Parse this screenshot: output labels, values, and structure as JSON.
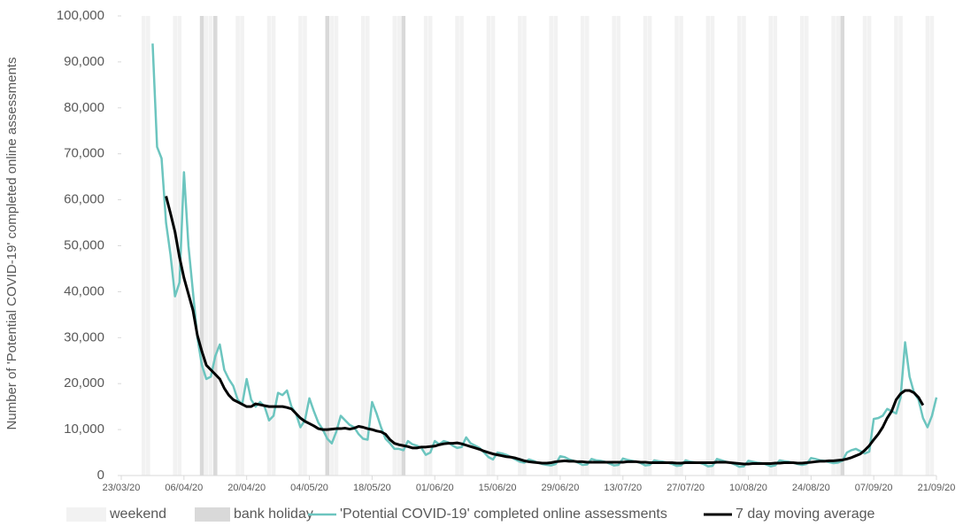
{
  "chart_data": {
    "type": "line",
    "y_label": "Number of 'Potential COVID-19' completed online assessments",
    "xlim": [
      "23/03/20",
      "21/09/20"
    ],
    "xticks": [
      "23/03/20",
      "06/04/20",
      "20/04/20",
      "04/05/20",
      "18/05/20",
      "01/06/20",
      "15/06/20",
      "29/06/20",
      "13/07/20",
      "27/07/20",
      "10/08/20",
      "24/08/20",
      "07/09/20",
      "21/09/20"
    ],
    "ylim": [
      0,
      100000
    ],
    "yticks": [
      {
        "value": 0,
        "label": "0"
      },
      {
        "value": 10000,
        "label": "10,000"
      },
      {
        "value": 20000,
        "label": "20,000"
      },
      {
        "value": 30000,
        "label": "30,000"
      },
      {
        "value": 40000,
        "label": "40,000"
      },
      {
        "value": 50000,
        "label": "50,000"
      },
      {
        "value": 60000,
        "label": "60,000"
      },
      {
        "value": 70000,
        "label": "70,000"
      },
      {
        "value": 80000,
        "label": "80,000"
      },
      {
        "value": 90000,
        "label": "90,000"
      },
      {
        "value": 100000,
        "label": "100,000"
      }
    ],
    "bands": [
      {
        "name": "weekend",
        "color": "#f2f2f2"
      },
      {
        "name": "bank holiday",
        "color": "#d9d9d9"
      }
    ],
    "bank_holidays": [
      "10/04/20",
      "13/04/20",
      "08/05/20",
      "25/05/20",
      "31/08/20"
    ],
    "x": [
      "30/03/20",
      "31/03/20",
      "01/04/20",
      "02/04/20",
      "03/04/20",
      "04/04/20",
      "05/04/20",
      "06/04/20",
      "07/04/20",
      "08/04/20",
      "09/04/20",
      "10/04/20",
      "11/04/20",
      "12/04/20",
      "13/04/20",
      "14/04/20",
      "15/04/20",
      "16/04/20",
      "17/04/20",
      "18/04/20",
      "19/04/20",
      "20/04/20",
      "21/04/20",
      "22/04/20",
      "23/04/20",
      "24/04/20",
      "25/04/20",
      "26/04/20",
      "27/04/20",
      "28/04/20",
      "29/04/20",
      "30/04/20",
      "01/05/20",
      "02/05/20",
      "03/05/20",
      "04/05/20",
      "05/05/20",
      "06/05/20",
      "07/05/20",
      "08/05/20",
      "09/05/20",
      "10/05/20",
      "11/05/20",
      "12/05/20",
      "13/05/20",
      "14/05/20",
      "15/05/20",
      "16/05/20",
      "17/05/20",
      "18/05/20",
      "19/05/20",
      "20/05/20",
      "21/05/20",
      "22/05/20",
      "23/05/20",
      "24/05/20",
      "25/05/20",
      "26/05/20",
      "27/05/20",
      "28/05/20",
      "29/05/20",
      "30/05/20",
      "31/05/20",
      "01/06/20",
      "02/06/20",
      "03/06/20",
      "04/06/20",
      "05/06/20",
      "06/06/20",
      "07/06/20",
      "08/06/20",
      "09/06/20",
      "10/06/20",
      "11/06/20",
      "12/06/20",
      "13/06/20",
      "14/06/20",
      "15/06/20",
      "16/06/20",
      "17/06/20",
      "18/06/20",
      "19/06/20",
      "20/06/20",
      "21/06/20",
      "22/06/20",
      "23/06/20",
      "24/06/20",
      "25/06/20",
      "26/06/20",
      "27/06/20",
      "28/06/20",
      "29/06/20",
      "30/06/20",
      "01/07/20",
      "02/07/20",
      "03/07/20",
      "04/07/20",
      "05/07/20",
      "06/07/20",
      "07/07/20",
      "08/07/20",
      "09/07/20",
      "10/07/20",
      "11/07/20",
      "12/07/20",
      "13/07/20",
      "14/07/20",
      "15/07/20",
      "16/07/20",
      "17/07/20",
      "18/07/20",
      "19/07/20",
      "20/07/20",
      "21/07/20",
      "22/07/20",
      "23/07/20",
      "24/07/20",
      "25/07/20",
      "26/07/20",
      "27/07/20",
      "28/07/20",
      "29/07/20",
      "30/07/20",
      "31/07/20",
      "01/08/20",
      "02/08/20",
      "03/08/20",
      "04/08/20",
      "05/08/20",
      "06/08/20",
      "07/08/20",
      "08/08/20",
      "09/08/20",
      "10/08/20",
      "11/08/20",
      "12/08/20",
      "13/08/20",
      "14/08/20",
      "15/08/20",
      "16/08/20",
      "17/08/20",
      "18/08/20",
      "19/08/20",
      "20/08/20",
      "21/08/20",
      "22/08/20",
      "23/08/20",
      "24/08/20",
      "25/08/20",
      "26/08/20",
      "27/08/20",
      "28/08/20",
      "29/08/20",
      "30/08/20",
      "31/08/20",
      "01/09/20",
      "02/09/20",
      "03/09/20",
      "04/09/20",
      "05/09/20",
      "06/09/20",
      "07/09/20",
      "08/09/20",
      "09/09/20",
      "10/09/20",
      "11/09/20",
      "12/09/20",
      "13/09/20",
      "14/09/20",
      "15/09/20",
      "16/09/20",
      "17/09/20",
      "18/09/20",
      "19/09/20",
      "20/09/20",
      "21/09/20"
    ],
    "series": [
      {
        "name": "'Potential COVID-19' completed online assessments",
        "color": "#6cc5bf",
        "width": 2.5,
        "values": [
          94000,
          71500,
          69000,
          55000,
          48000,
          39000,
          42000,
          66000,
          50000,
          40000,
          30000,
          24000,
          21000,
          21500,
          26000,
          28500,
          23000,
          21000,
          19500,
          16500,
          15500,
          21000,
          16500,
          15000,
          16000,
          15000,
          12000,
          13000,
          18000,
          17500,
          18500,
          15000,
          13500,
          10500,
          12000,
          16800,
          14000,
          11500,
          10000,
          8000,
          7000,
          9500,
          13000,
          12000,
          11000,
          10500,
          9000,
          8000,
          7800,
          16000,
          13500,
          10500,
          8000,
          7000,
          5800,
          5800,
          5500,
          7500,
          6800,
          6500,
          6000,
          4500,
          5000,
          7500,
          6800,
          7500,
          7200,
          6500,
          6000,
          6200,
          8300,
          7000,
          6500,
          6000,
          5000,
          4000,
          3500,
          5000,
          4800,
          4500,
          4000,
          3500,
          3000,
          2800,
          3500,
          3200,
          2800,
          2500,
          2300,
          2200,
          2500,
          4200,
          4000,
          3500,
          3200,
          2800,
          2300,
          2400,
          3600,
          3300,
          3200,
          3000,
          2600,
          2200,
          2300,
          3700,
          3400,
          3200,
          3000,
          2700,
          2200,
          2300,
          3300,
          3100,
          3000,
          2800,
          2500,
          2100,
          2200,
          3300,
          3000,
          2900,
          2800,
          2500,
          2000,
          2100,
          3600,
          3300,
          3000,
          2800,
          2400,
          1900,
          2000,
          3200,
          3000,
          2800,
          2700,
          2400,
          2000,
          2200,
          3300,
          3100,
          3000,
          2800,
          2500,
          2300,
          2500,
          3800,
          3600,
          3300,
          3200,
          2900,
          2700,
          2800,
          3200,
          5000,
          5500,
          5800,
          5300,
          4800,
          5200,
          12300,
          12500,
          13000,
          14500,
          14000,
          13500,
          17000,
          29000,
          21500,
          18000,
          16500,
          12500,
          10500,
          13000,
          17000
        ]
      },
      {
        "name": "7 day moving average",
        "color": "#000000",
        "width": 3,
        "values": [
          null,
          null,
          null,
          60800,
          57000,
          53000,
          47500,
          43000,
          39500,
          36000,
          30500,
          27000,
          24000,
          23000,
          22000,
          21000,
          19000,
          17500,
          16500,
          16000,
          15500,
          15000,
          15000,
          15600,
          15400,
          15200,
          15000,
          15000,
          15000,
          15000,
          14800,
          14500,
          13500,
          12500,
          11800,
          11300,
          10800,
          10200,
          10000,
          10000,
          10100,
          10200,
          10200,
          10300,
          10100,
          10300,
          10700,
          10500,
          10200,
          10000,
          9700,
          9500,
          9000,
          7800,
          7000,
          6700,
          6500,
          6300,
          6000,
          6000,
          6200,
          6200,
          6300,
          6400,
          6700,
          6900,
          7000,
          7000,
          7100,
          6900,
          6600,
          6300,
          6000,
          5700,
          5300,
          5000,
          4700,
          4500,
          4300,
          4100,
          4000,
          3800,
          3500,
          3200,
          3000,
          2900,
          2800,
          2700,
          2700,
          2800,
          3000,
          3100,
          3200,
          3100,
          3100,
          3000,
          3000,
          2900,
          2900,
          2900,
          2900,
          2900,
          2900,
          2900,
          2900,
          2900,
          3000,
          3000,
          3000,
          2900,
          2900,
          2800,
          2800,
          2800,
          2800,
          2800,
          2800,
          2700,
          2700,
          2800,
          2800,
          2800,
          2800,
          2800,
          2800,
          2800,
          2900,
          2900,
          2900,
          2800,
          2700,
          2600,
          2500,
          2500,
          2600,
          2600,
          2600,
          2600,
          2600,
          2700,
          2700,
          2800,
          2800,
          2800,
          2700,
          2700,
          2800,
          2900,
          3000,
          3100,
          3100,
          3200,
          3200,
          3300,
          3400,
          3600,
          3900,
          4300,
          4700,
          5500,
          6500,
          7800,
          9000,
          10500,
          12500,
          14000,
          16500,
          17800,
          18500,
          18500,
          18000,
          17000,
          15300,
          null,
          null,
          null
        ]
      }
    ]
  }
}
